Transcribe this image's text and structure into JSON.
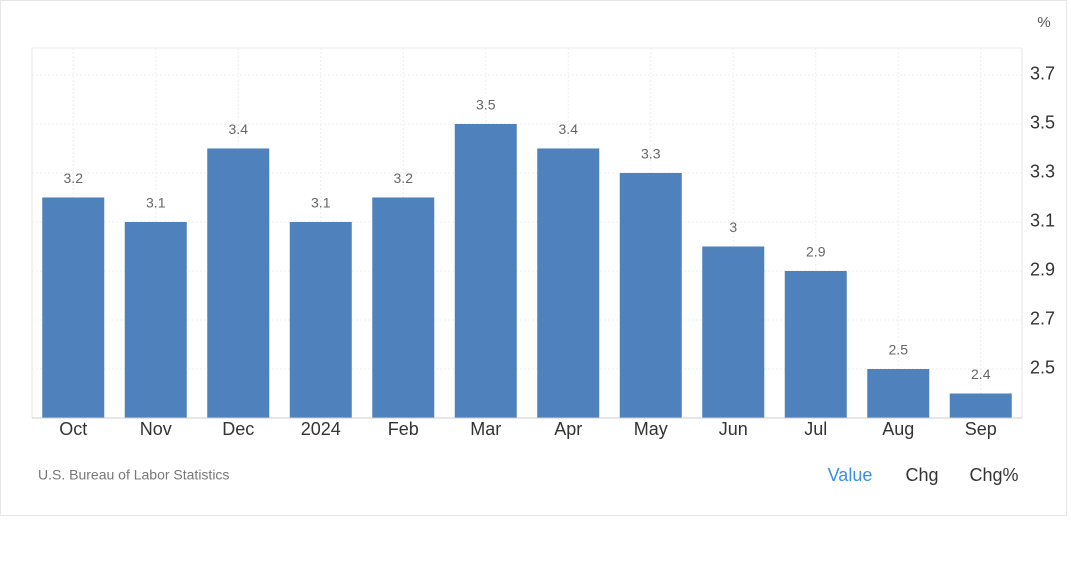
{
  "chart_data": {
    "type": "bar",
    "y_unit": "%",
    "categories": [
      "Oct",
      "Nov",
      "Dec",
      "2024",
      "Feb",
      "Mar",
      "Apr",
      "May",
      "Jun",
      "Jul",
      "Aug",
      "Sep"
    ],
    "values": [
      3.2,
      3.1,
      3.4,
      3.1,
      3.2,
      3.5,
      3.4,
      3.3,
      3,
      2.9,
      2.5,
      2.4
    ],
    "color": "#4f81bd",
    "ylim": [
      2.3,
      3.81
    ],
    "yticks": [
      2.5,
      2.7,
      2.9,
      3.1,
      3.3,
      3.5,
      3.7
    ],
    "grid": true,
    "source": "U.S. Bureau of Labor Statistics"
  },
  "controls": [
    "Value",
    "Chg",
    "Chg%"
  ]
}
